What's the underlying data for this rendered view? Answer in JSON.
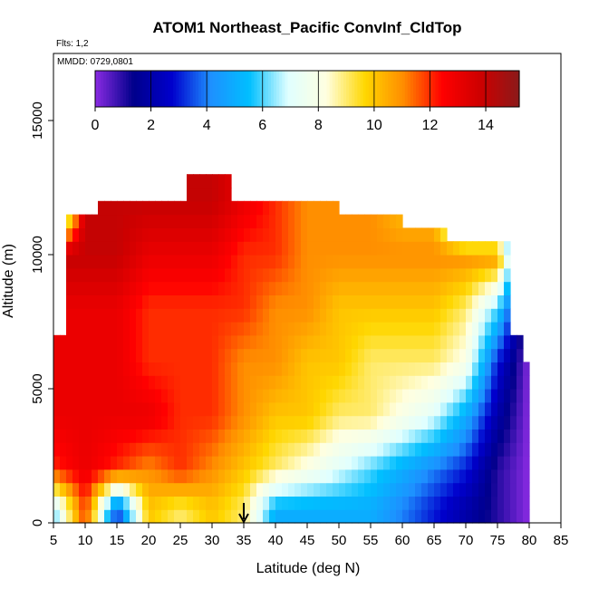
{
  "chart_data": {
    "type": "heatmap",
    "title": "ATOM1 Northeast_Pacific ConvInf_CldTop",
    "xlabel": "Latitude (deg N)",
    "ylabel": "Altitude (m)",
    "xlim": [
      5,
      85
    ],
    "ylim": [
      0,
      17500
    ],
    "x_ticks": [
      "5",
      "10",
      "15",
      "20",
      "25",
      "30",
      "35",
      "40",
      "45",
      "50",
      "55",
      "60",
      "65",
      "70",
      "75",
      "80",
      "85"
    ],
    "y_ticks": [
      "0",
      "5000",
      "10000",
      "15000"
    ],
    "flights_note": "Flts: 1,2",
    "date_note": "MMDD: 0729,0801",
    "colorbar": {
      "range": [
        0,
        15.2
      ],
      "ticks": [
        "0",
        "2",
        "4",
        "6",
        "8",
        "10",
        "12",
        "14"
      ],
      "colors": [
        "#8a2be2",
        "#00008b",
        "#0000cd",
        "#1e90ff",
        "#00bfff",
        "#e0ffff",
        "#ffffe0",
        "#ffd700",
        "#ff8c00",
        "#ff0000",
        "#cd0000",
        "#8b1a1a"
      ]
    },
    "field_description_values": {
      "lat_bins": [
        5,
        10,
        15,
        20,
        25,
        30,
        35,
        40,
        45,
        50,
        55,
        60,
        65,
        70,
        75,
        80
      ],
      "alt_km": [
        0.5,
        2,
        4,
        6,
        8,
        10,
        12
      ],
      "values": [
        [
          6,
          12,
          3,
          10,
          9,
          10,
          9,
          5,
          5,
          5,
          5,
          4,
          3,
          2,
          1,
          0
        ],
        [
          12,
          13,
          12,
          11,
          12,
          11,
          10,
          9,
          8,
          7,
          6,
          5,
          4,
          3,
          1,
          0
        ],
        [
          13,
          13,
          13,
          13,
          12,
          12,
          11,
          10,
          10,
          9,
          9,
          8,
          7,
          5,
          2,
          0
        ],
        [
          13,
          13,
          13,
          12,
          12,
          12,
          11,
          11,
          10,
          10,
          9,
          9,
          9,
          8,
          3,
          0
        ],
        [
          13,
          13,
          13,
          12,
          12,
          12,
          12,
          11,
          11,
          10,
          10,
          10,
          10,
          9,
          6,
          0
        ],
        [
          14,
          14,
          14,
          13,
          13,
          13,
          12,
          12,
          11,
          11,
          11,
          11,
          11,
          11,
          11,
          0
        ],
        [
          0,
          14,
          14,
          14,
          14,
          14,
          13,
          12,
          11,
          11,
          11,
          10,
          10,
          0,
          0,
          0
        ]
      ]
    },
    "marker": {
      "lat": 35,
      "label": ""
    }
  }
}
